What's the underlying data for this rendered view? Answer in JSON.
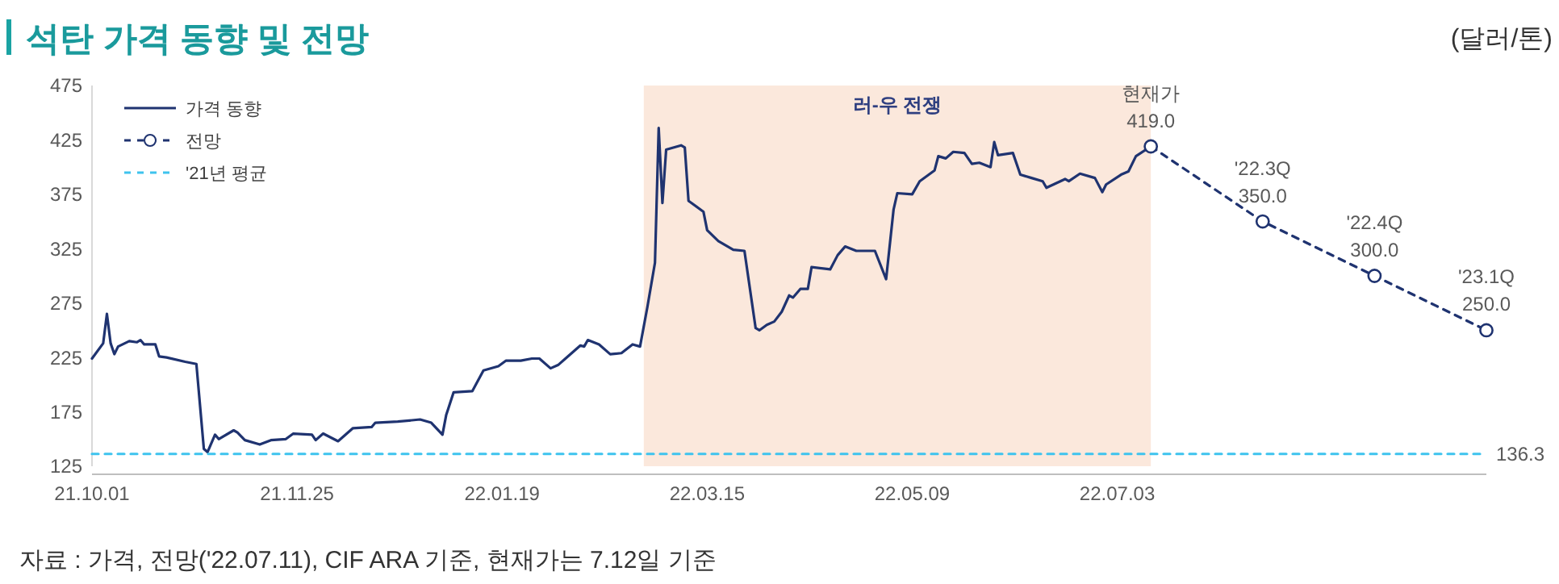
{
  "chart_data": {
    "type": "line",
    "title": "석탄 가격 동향 및 전망",
    "ylabel": "(달러/톤)",
    "xlim": [
      "2021-10-01",
      "2022-10-10"
    ],
    "xticks": [
      {
        "value": "2021-10-01",
        "label": "21.10.01"
      },
      {
        "value": "2021-11-25",
        "label": "21.11.25"
      },
      {
        "value": "2022-01-19",
        "label": "22.01.19"
      },
      {
        "value": "2022-03-15",
        "label": "22.03.15"
      },
      {
        "value": "2022-05-09",
        "label": "22.05.09"
      },
      {
        "value": "2022-07-03",
        "label": "22.07.03"
      }
    ],
    "ylim": [
      125,
      475
    ],
    "yticks": [
      125,
      175,
      225,
      275,
      325,
      375,
      425,
      475
    ],
    "grid": false,
    "legend": "top left",
    "bands": [
      {
        "axis": "x",
        "from": "2022-02-26",
        "to": "2022-07-12",
        "label": "러-우 전쟁",
        "color": "#fbe8dc"
      }
    ],
    "series": [
      {
        "name": "가격 동향",
        "color": "#1f3370",
        "line_style": "solid",
        "marker": "none",
        "x": [
          "2021-10-01",
          "2021-10-04",
          "2021-10-05",
          "2021-10-06",
          "2021-10-07",
          "2021-10-08",
          "2021-10-11",
          "2021-10-13",
          "2021-10-14",
          "2021-10-15",
          "2021-10-18",
          "2021-10-19",
          "2021-10-21",
          "2021-10-26",
          "2021-10-29",
          "2021-10-31",
          "2021-11-01",
          "2021-11-03",
          "2021-11-04",
          "2021-11-08",
          "2021-11-09",
          "2021-11-11",
          "2021-11-15",
          "2021-11-18",
          "2021-11-22",
          "2021-11-24",
          "2021-11-29",
          "2021-11-30",
          "2021-12-02",
          "2021-12-06",
          "2021-12-10",
          "2021-12-15",
          "2021-12-16",
          "2021-12-22",
          "2021-12-28",
          "2021-12-31",
          "2022-01-03",
          "2022-01-04",
          "2022-01-06",
          "2022-01-11",
          "2022-01-14",
          "2022-01-18",
          "2022-01-20",
          "2022-01-24",
          "2022-01-27",
          "2022-01-29",
          "2022-02-01",
          "2022-02-03",
          "2022-02-05",
          "2022-02-09",
          "2022-02-10",
          "2022-02-11",
          "2022-02-14",
          "2022-02-17",
          "2022-02-20",
          "2022-02-23",
          "2022-02-25",
          "2022-02-27",
          "2022-03-01",
          "2022-03-02",
          "2022-03-03",
          "2022-03-04",
          "2022-03-08",
          "2022-03-09",
          "2022-03-10",
          "2022-03-14",
          "2022-03-15",
          "2022-03-18",
          "2022-03-22",
          "2022-03-25",
          "2022-03-28",
          "2022-03-29",
          "2022-03-31",
          "2022-04-02",
          "2022-04-04",
          "2022-04-06",
          "2022-04-07",
          "2022-04-09",
          "2022-04-11",
          "2022-04-12",
          "2022-04-17",
          "2022-04-19",
          "2022-04-21",
          "2022-04-24",
          "2022-04-29",
          "2022-05-02",
          "2022-05-04",
          "2022-05-05",
          "2022-05-09",
          "2022-05-11",
          "2022-05-15",
          "2022-05-16",
          "2022-05-18",
          "2022-05-20",
          "2022-05-23",
          "2022-05-25",
          "2022-05-27",
          "2022-05-30",
          "2022-05-31",
          "2022-06-01",
          "2022-06-05",
          "2022-06-07",
          "2022-06-10",
          "2022-06-13",
          "2022-06-14",
          "2022-06-19",
          "2022-06-20",
          "2022-06-23",
          "2022-06-27",
          "2022-06-29",
          "2022-06-30",
          "2022-07-04",
          "2022-07-06",
          "2022-07-08",
          "2022-07-12"
        ],
        "values": [
          224,
          238,
          265,
          238,
          228,
          235,
          240,
          239,
          241,
          237,
          237,
          226,
          225,
          221,
          219,
          141,
          138,
          154,
          150,
          158,
          156,
          149,
          145,
          149,
          150,
          155,
          154,
          149,
          155,
          148,
          160,
          161,
          165,
          166,
          168,
          165,
          154,
          172,
          193,
          194,
          213,
          217,
          222,
          222,
          224,
          224,
          215,
          218,
          224,
          236,
          235,
          241,
          237,
          228,
          229,
          237,
          235,
          272,
          312,
          436,
          367,
          416,
          420,
          418,
          369,
          359,
          342,
          332,
          324,
          323,
          252,
          250,
          255,
          258,
          267,
          282,
          280,
          288,
          288,
          308,
          306,
          319,
          327,
          323,
          323,
          297,
          361,
          376,
          375,
          387,
          397,
          410,
          408,
          414,
          413,
          403,
          404,
          400,
          423,
          411,
          413,
          393,
          390,
          387,
          381,
          389,
          387,
          394,
          390,
          377,
          384,
          393,
          396,
          410,
          419
        ]
      },
      {
        "name": "전망",
        "color": "#1f3370",
        "line_style": "dashed",
        "marker": "circle",
        "x": [
          "2022-07-12",
          "2022-08-11",
          "2022-09-10",
          "2022-10-10"
        ],
        "values": [
          419,
          350,
          300,
          250
        ],
        "value_labels": [
          "현재가\n419.0",
          "'22.3Q\n350.0",
          "'22.4Q\n300.0",
          "'23.1Q\n250.0"
        ]
      },
      {
        "name": "'21년 평균",
        "color": "#3ec3ee",
        "line_style": "dashed",
        "marker": "none",
        "x": [
          "2021-10-01",
          "2022-10-10"
        ],
        "values": [
          136.3,
          136.3
        ]
      }
    ],
    "annotations": [
      {
        "text": "136.3",
        "x": "2022-10-10",
        "y": 136.3
      },
      "자료 : 가격, 전망('22.07.11), CIF ARA 기준, 현재가는 7.12일 기준"
    ]
  }
}
